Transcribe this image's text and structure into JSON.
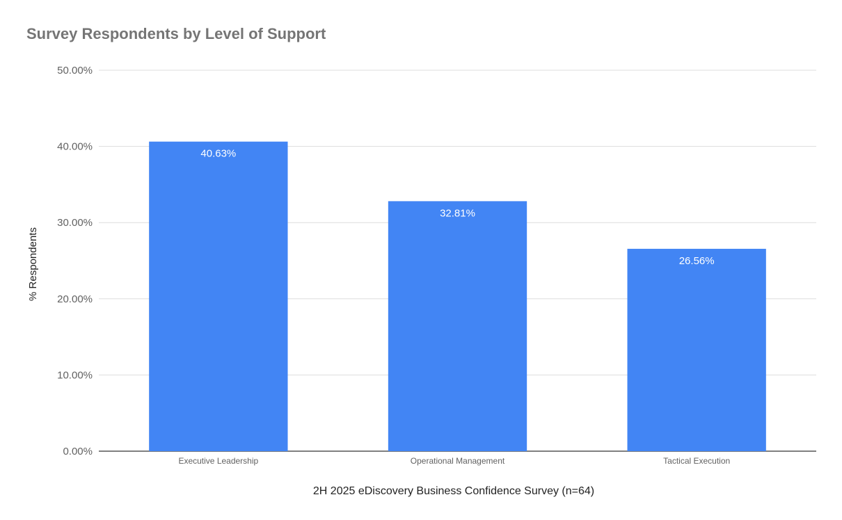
{
  "chart_data": {
    "type": "bar",
    "title": "Survey Respondents by Level of Support",
    "xlabel": "2H 2025 eDiscovery Business Confidence Survey (n=64)",
    "ylabel": "% Respondents",
    "categories": [
      "Executive Leadership",
      "Operational Management",
      "Tactical Execution"
    ],
    "values": [
      40.63,
      32.81,
      26.56
    ],
    "data_labels": [
      "40.63%",
      "32.81%",
      "26.56%"
    ],
    "ylim": [
      0,
      50
    ],
    "yticks": [
      0,
      10,
      20,
      30,
      40,
      50
    ],
    "ytick_labels": [
      "0.00%",
      "10.00%",
      "20.00%",
      "30.00%",
      "40.00%",
      "50.00%"
    ],
    "grid": true,
    "legend": "none",
    "colors": {
      "bar": "#4285f4",
      "title": "#757575",
      "grid": "#dddddd",
      "axis": "#333333",
      "tick_text": "#616161",
      "data_label": "#ffffff",
      "axis_title": "#222222"
    }
  }
}
